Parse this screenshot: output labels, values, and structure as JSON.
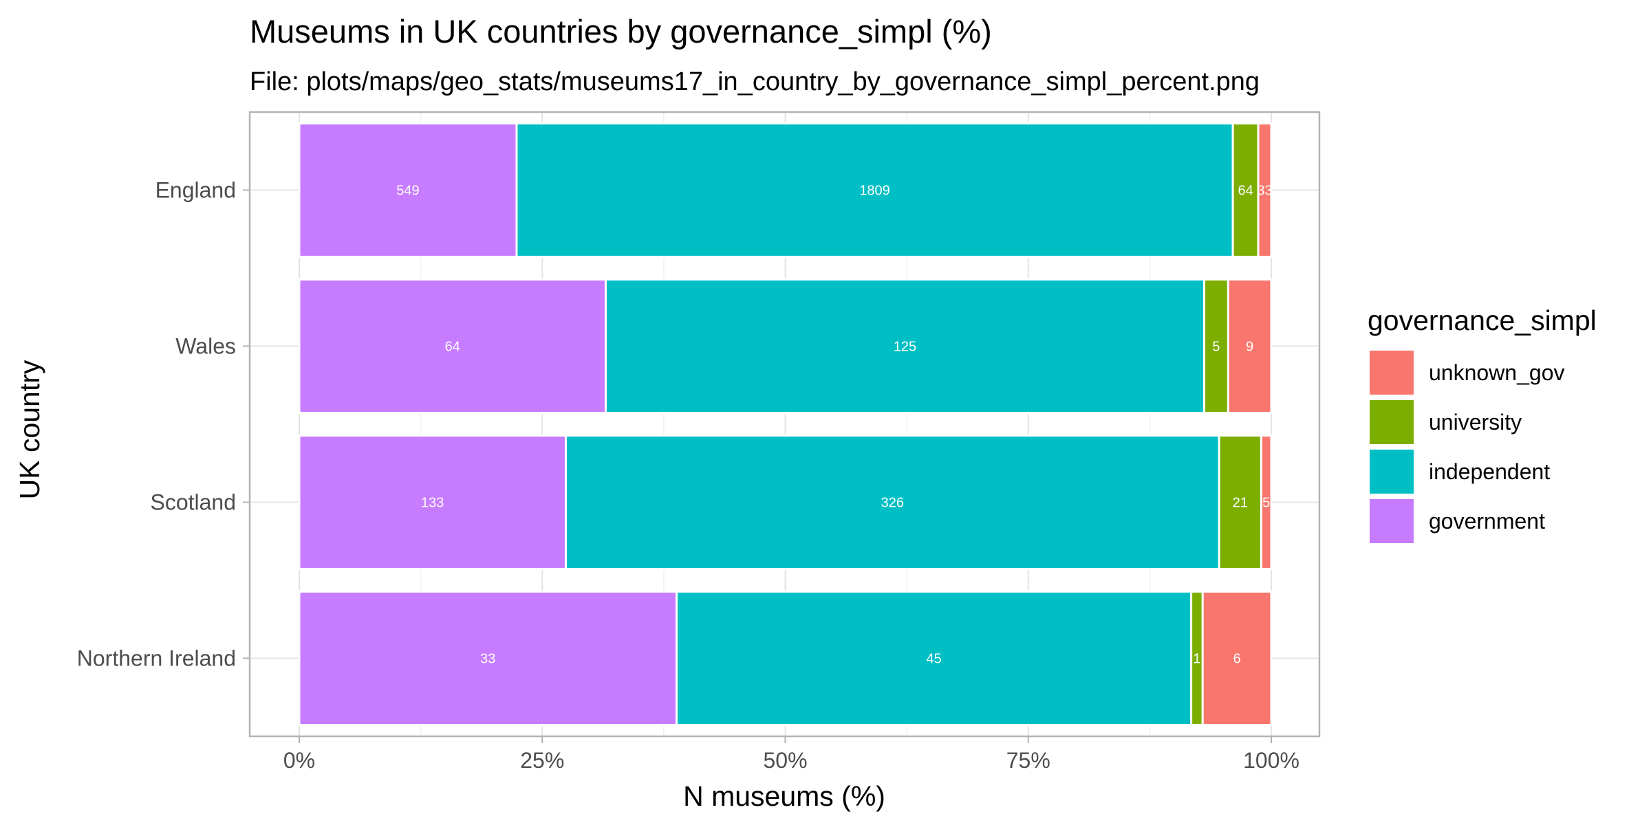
{
  "chart_data": {
    "type": "bar",
    "orientation": "horizontal",
    "stacked": "percent",
    "title": "Museums in UK countries by governance_simpl (%)",
    "subtitle": "File: plots/maps/geo_stats/museums17_in_country_by_governance_simpl_percent.png",
    "xlabel": "N museums (%)",
    "ylabel": "UK country",
    "xlim": [
      0,
      100
    ],
    "x_ticks": [
      "0%",
      "25%",
      "50%",
      "75%",
      "100%"
    ],
    "categories": [
      "England",
      "Wales",
      "Scotland",
      "Northern Ireland"
    ],
    "series": [
      {
        "name": "government",
        "color": "#C77CFF",
        "values": [
          549,
          64,
          133,
          33
        ]
      },
      {
        "name": "independent",
        "color": "#00BFC4",
        "values": [
          1809,
          125,
          326,
          45
        ]
      },
      {
        "name": "university",
        "color": "#7CAE00",
        "values": [
          64,
          5,
          21,
          1
        ]
      },
      {
        "name": "unknown_gov",
        "color": "#F8766D",
        "values": [
          33,
          9,
          5,
          6
        ]
      }
    ],
    "legend": {
      "title": "governance_simpl",
      "position": "right",
      "order": [
        "unknown_gov",
        "university",
        "independent",
        "government"
      ]
    },
    "grid": true
  }
}
